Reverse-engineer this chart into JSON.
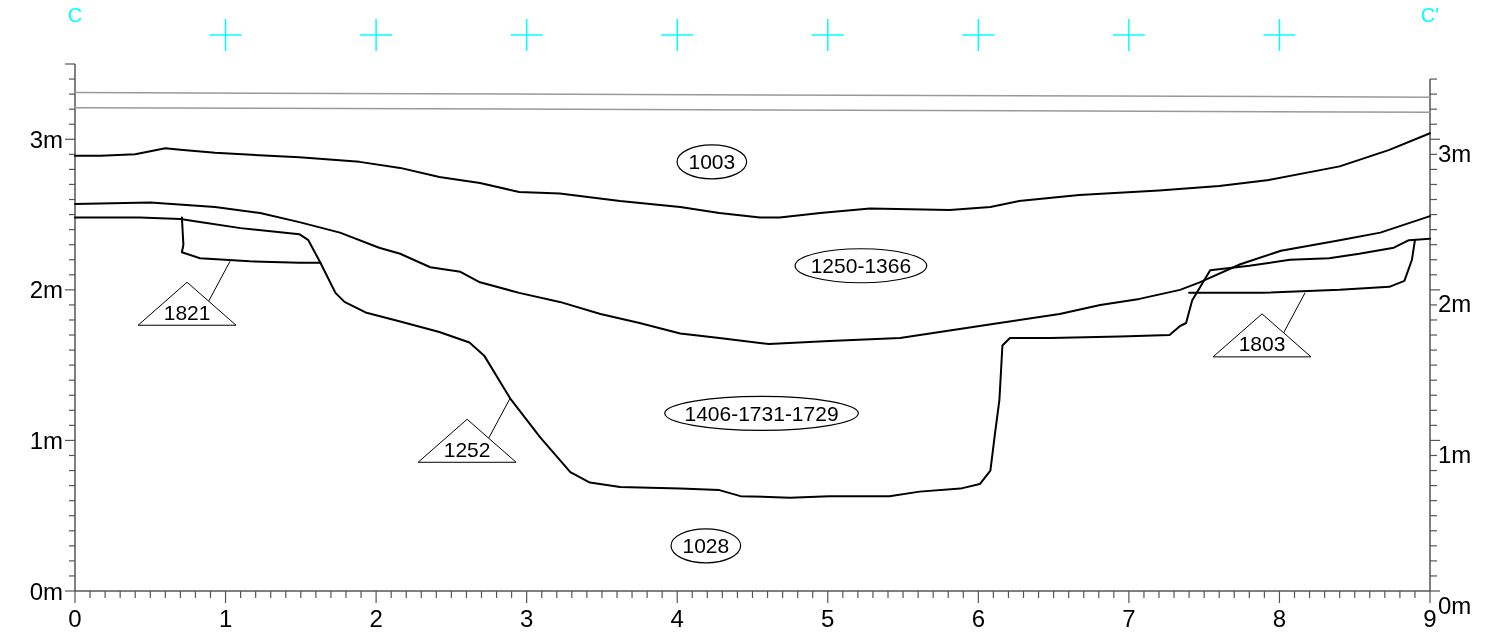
{
  "chart_data": {
    "type": "line",
    "marker": "none",
    "line_style": "solid",
    "grid": false,
    "xlim": [
      0,
      9
    ],
    "ylim": [
      0,
      3.5
    ],
    "y2lim": [
      0,
      3.5
    ],
    "xticks": [
      0,
      {
        "value": 0.1,
        "label": null
      },
      {
        "value": 0.2,
        "label": null
      },
      {
        "value": 0.3,
        "label": null
      },
      {
        "value": 0.4,
        "label": null
      },
      {
        "value": 0.5,
        "label": null
      },
      {
        "value": 0.6,
        "label": null
      },
      {
        "value": 0.7,
        "label": null
      },
      {
        "value": 0.8,
        "label": null
      },
      {
        "value": 0.9,
        "label": null
      },
      1,
      {
        "value": 1.1,
        "label": null
      },
      {
        "value": 1.2,
        "label": null
      },
      {
        "value": 1.3,
        "label": null
      },
      {
        "value": 1.4,
        "label": null
      },
      {
        "value": 1.5,
        "label": null
      },
      {
        "value": 1.6,
        "label": null
      },
      {
        "value": 1.7,
        "label": null
      },
      {
        "value": 1.8,
        "label": null
      },
      {
        "value": 1.9,
        "label": null
      },
      2,
      {
        "value": 2.1,
        "label": null
      },
      {
        "value": 2.2,
        "label": null
      },
      {
        "value": 2.3,
        "label": null
      },
      {
        "value": 2.4,
        "label": null
      },
      {
        "value": 2.5,
        "label": null
      },
      {
        "value": 2.6,
        "label": null
      },
      {
        "value": 2.7,
        "label": null
      },
      {
        "value": 2.8,
        "label": null
      },
      {
        "value": 2.9,
        "label": null
      },
      3,
      {
        "value": 3.1,
        "label": null
      },
      {
        "value": 3.2,
        "label": null
      },
      {
        "value": 3.3,
        "label": null
      },
      {
        "value": 3.4,
        "label": null
      },
      {
        "value": 3.5,
        "label": null
      },
      {
        "value": 3.6,
        "label": null
      },
      {
        "value": 3.7,
        "label": null
      },
      {
        "value": 3.8,
        "label": null
      },
      {
        "value": 3.9,
        "label": null
      },
      4,
      {
        "value": 4.1,
        "label": null
      },
      {
        "value": 4.2,
        "label": null
      },
      {
        "value": 4.3,
        "label": null
      },
      {
        "value": 4.4,
        "label": null
      },
      {
        "value": 4.5,
        "label": null
      },
      {
        "value": 4.6,
        "label": null
      },
      {
        "value": 4.7,
        "label": null
      },
      {
        "value": 4.8,
        "label": null
      },
      {
        "value": 4.9,
        "label": null
      },
      5,
      {
        "value": 5.1,
        "label": null
      },
      {
        "value": 5.2,
        "label": null
      },
      {
        "value": 5.3,
        "label": null
      },
      {
        "value": 5.4,
        "label": null
      },
      {
        "value": 5.5,
        "label": null
      },
      {
        "value": 5.6,
        "label": null
      },
      {
        "value": 5.7,
        "label": null
      },
      {
        "value": 5.8,
        "label": null
      },
      {
        "value": 5.9,
        "label": null
      },
      6,
      {
        "value": 6.1,
        "label": null
      },
      {
        "value": 6.2,
        "label": null
      },
      {
        "value": 6.3,
        "label": null
      },
      {
        "value": 6.4,
        "label": null
      },
      {
        "value": 6.5,
        "label": null
      },
      {
        "value": 6.6,
        "label": null
      },
      {
        "value": 6.7,
        "label": null
      },
      {
        "value": 6.8,
        "label": null
      },
      {
        "value": 6.9,
        "label": null
      },
      7,
      {
        "value": 7.1,
        "label": null
      },
      {
        "value": 7.2,
        "label": null
      },
      {
        "value": 7.3,
        "label": null
      },
      {
        "value": 7.4,
        "label": null
      },
      {
        "value": 7.5,
        "label": null
      },
      {
        "value": 7.6,
        "label": null
      },
      {
        "value": 7.7,
        "label": null
      },
      {
        "value": 7.8,
        "label": null
      },
      {
        "value": 7.9,
        "label": null
      },
      8,
      {
        "value": 8.1,
        "label": null
      },
      {
        "value": 8.2,
        "label": null
      },
      {
        "value": 8.3,
        "label": null
      },
      {
        "value": 8.4,
        "label": null
      },
      {
        "value": 8.5,
        "label": null
      },
      {
        "value": 8.6,
        "label": null
      },
      {
        "value": 8.7,
        "label": null
      },
      {
        "value": 8.8,
        "label": null
      },
      {
        "value": 8.9,
        "label": null
      },
      9
    ],
    "yticks": [
      {
        "value": 0,
        "label": "0m"
      },
      {
        "value": 0.1,
        "label": null
      },
      {
        "value": 0.2,
        "label": null
      },
      {
        "value": 0.3,
        "label": null
      },
      {
        "value": 0.4,
        "label": null
      },
      {
        "value": 0.5,
        "label": null
      },
      {
        "value": 0.6,
        "label": null
      },
      {
        "value": 0.7,
        "label": null
      },
      {
        "value": 0.8,
        "label": null
      },
      {
        "value": 0.9,
        "label": null
      },
      {
        "value": 1,
        "label": "1m"
      },
      {
        "value": 1.1,
        "label": null
      },
      {
        "value": 1.2,
        "label": null
      },
      {
        "value": 1.3,
        "label": null
      },
      {
        "value": 1.4,
        "label": null
      },
      {
        "value": 1.5,
        "label": null
      },
      {
        "value": 1.6,
        "label": null
      },
      {
        "value": 1.7,
        "label": null
      },
      {
        "value": 1.8,
        "label": null
      },
      {
        "value": 1.9,
        "label": null
      },
      {
        "value": 2,
        "label": "2m"
      },
      {
        "value": 2.1,
        "label": null
      },
      {
        "value": 2.2,
        "label": null
      },
      {
        "value": 2.3,
        "label": null
      },
      {
        "value": 2.4,
        "label": null
      },
      {
        "value": 2.5,
        "label": null
      },
      {
        "value": 2.6,
        "label": null
      },
      {
        "value": 2.7,
        "label": null
      },
      {
        "value": 2.8,
        "label": null
      },
      {
        "value": 2.9,
        "label": null
      },
      {
        "value": 3,
        "label": "3m"
      },
      {
        "value": 3.1,
        "label": null
      },
      {
        "value": 3.2,
        "label": null
      },
      {
        "value": 3.3,
        "label": null
      },
      {
        "value": 3.4,
        "label": null
      },
      {
        "value": 3.5,
        "label": null
      }
    ],
    "y2ticks": [
      {
        "value": 0,
        "label": "0m"
      },
      {
        "value": 0.1,
        "label": null
      },
      {
        "value": 0.2,
        "label": null
      },
      {
        "value": 0.3,
        "label": null
      },
      {
        "value": 0.4,
        "label": null
      },
      {
        "value": 0.5,
        "label": null
      },
      {
        "value": 0.6,
        "label": null
      },
      {
        "value": 0.7,
        "label": null
      },
      {
        "value": 0.8,
        "label": null
      },
      {
        "value": 0.9,
        "label": null
      },
      {
        "value": 1,
        "label": "1m"
      },
      {
        "value": 1.1,
        "label": null
      },
      {
        "value": 1.2,
        "label": null
      },
      {
        "value": 1.3,
        "label": null
      },
      {
        "value": 1.4,
        "label": null
      },
      {
        "value": 1.5,
        "label": null
      },
      {
        "value": 1.6,
        "label": null
      },
      {
        "value": 1.7,
        "label": null
      },
      {
        "value": 1.8,
        "label": null
      },
      {
        "value": 1.9,
        "label": null
      },
      {
        "value": 2,
        "label": "2m"
      },
      {
        "value": 2.1,
        "label": null
      },
      {
        "value": 2.2,
        "label": null
      },
      {
        "value": 2.3,
        "label": null
      },
      {
        "value": 2.4,
        "label": null
      },
      {
        "value": 2.5,
        "label": null
      },
      {
        "value": 2.6,
        "label": null
      },
      {
        "value": 2.7,
        "label": null
      },
      {
        "value": 2.8,
        "label": null
      },
      {
        "value": 2.9,
        "label": null
      },
      {
        "value": 3,
        "label": "3m"
      },
      {
        "value": 3.1,
        "label": null
      },
      {
        "value": 3.2,
        "label": null
      },
      {
        "value": 3.3,
        "label": null
      },
      {
        "value": 3.4,
        "label": null
      }
    ],
    "series": [
      {
        "color": "#999999",
        "x": [
          0,
          9
        ],
        "values": [
          3.31,
          3.28
        ]
      },
      {
        "color": "#999999",
        "x": [
          0,
          9
        ],
        "values": [
          3.21,
          3.18
        ]
      },
      {
        "color": "#000000",
        "x": [
          0,
          0.17,
          0.4,
          0.6,
          0.7,
          0.93,
          1.29,
          1.49,
          1.89,
          2.16,
          2.42,
          2.69,
          2.95,
          3.22,
          3.62,
          4.02,
          4.28,
          4.55,
          4.68,
          4.95,
          5.28,
          5.81,
          6.08,
          6.27,
          6.67,
          7.2,
          7.6,
          7.93,
          8.4,
          8.73,
          9
        ],
        "values": [
          2.89,
          2.89,
          2.9,
          2.94,
          2.93,
          2.91,
          2.89,
          2.88,
          2.85,
          2.81,
          2.75,
          2.71,
          2.65,
          2.64,
          2.59,
          2.55,
          2.51,
          2.48,
          2.48,
          2.51,
          2.54,
          2.53,
          2.55,
          2.59,
          2.63,
          2.66,
          2.69,
          2.73,
          2.82,
          2.93,
          3.04
        ]
      },
      {
        "color": "#000000",
        "x": [
          0,
          0.5,
          0.93,
          1.23,
          1.49,
          1.76,
          2.02,
          2.16,
          2.36,
          2.56,
          2.69,
          2.95,
          3.22,
          3.49,
          3.75,
          4.02,
          4.28,
          4.61,
          5.01,
          5.48,
          5.81,
          6.14,
          6.54,
          6.81,
          7.07,
          7.34,
          7.47,
          7.74,
          8.01,
          8.4,
          8.67,
          9
        ],
        "values": [
          2.57,
          2.58,
          2.55,
          2.51,
          2.45,
          2.38,
          2.28,
          2.24,
          2.15,
          2.12,
          2.05,
          1.98,
          1.92,
          1.84,
          1.78,
          1.71,
          1.68,
          1.64,
          1.66,
          1.68,
          1.73,
          1.78,
          1.84,
          1.9,
          1.94,
          2,
          2.05,
          2.17,
          2.26,
          2.33,
          2.38,
          2.49
        ]
      },
      {
        "color": "#000000",
        "x": [
          0,
          0.43,
          0.7,
          0.83,
          1.1,
          1.49,
          1.55,
          1.63,
          1.73,
          1.79,
          1.93,
          2.16,
          2.42,
          2.62,
          2.72,
          2.89,
          3.09,
          3.29,
          3.42,
          3.62,
          4.02,
          4.28,
          4.42,
          4.75,
          5.01,
          5.41,
          5.61,
          5.88,
          6.01,
          6.08,
          6.11,
          6.14,
          6.16,
          6.21,
          6.48,
          6.94,
          7.27,
          7.34,
          7.38,
          7.42,
          7.54,
          7.8,
          8.07,
          8.33,
          8.53,
          8.76,
          8.86,
          9
        ],
        "values": [
          2.48,
          2.48,
          2.47,
          2.45,
          2.41,
          2.37,
          2.33,
          2.18,
          1.98,
          1.92,
          1.85,
          1.79,
          1.72,
          1.65,
          1.56,
          1.28,
          1.02,
          0.79,
          0.72,
          0.69,
          0.68,
          0.67,
          0.63,
          0.62,
          0.63,
          0.63,
          0.66,
          0.68,
          0.71,
          0.8,
          1.04,
          1.27,
          1.63,
          1.68,
          1.68,
          1.69,
          1.7,
          1.76,
          1.78,
          1.93,
          2.13,
          2.16,
          2.2,
          2.21,
          2.24,
          2.28,
          2.33,
          2.34
        ]
      },
      {
        "color": "#000000",
        "x": [
          0.71,
          0.72,
          0.71,
          0.83,
          1.16,
          1.49,
          1.63
        ],
        "values": [
          2.48,
          2.3,
          2.25,
          2.21,
          2.19,
          2.18,
          2.18
        ]
      },
      {
        "color": "#000000",
        "x": [
          7.4,
          7.87,
          8.4,
          8.73,
          8.83,
          8.88,
          8.9
        ],
        "values": [
          1.98,
          1.98,
          2,
          2.02,
          2.06,
          2.2,
          2.33
        ]
      }
    ],
    "annotations": [
      "1003",
      "1250-1366",
      "1406-1731-1729",
      "1028",
      {
        "text": "1821",
        "x": 1.03,
        "y": 2.19
      },
      {
        "text": "1252",
        "x": 2.89,
        "y": 1.28
      },
      {
        "text": "1803",
        "x": 8.17,
        "y": 1.98
      },
      "C",
      "C'"
    ]
  }
}
